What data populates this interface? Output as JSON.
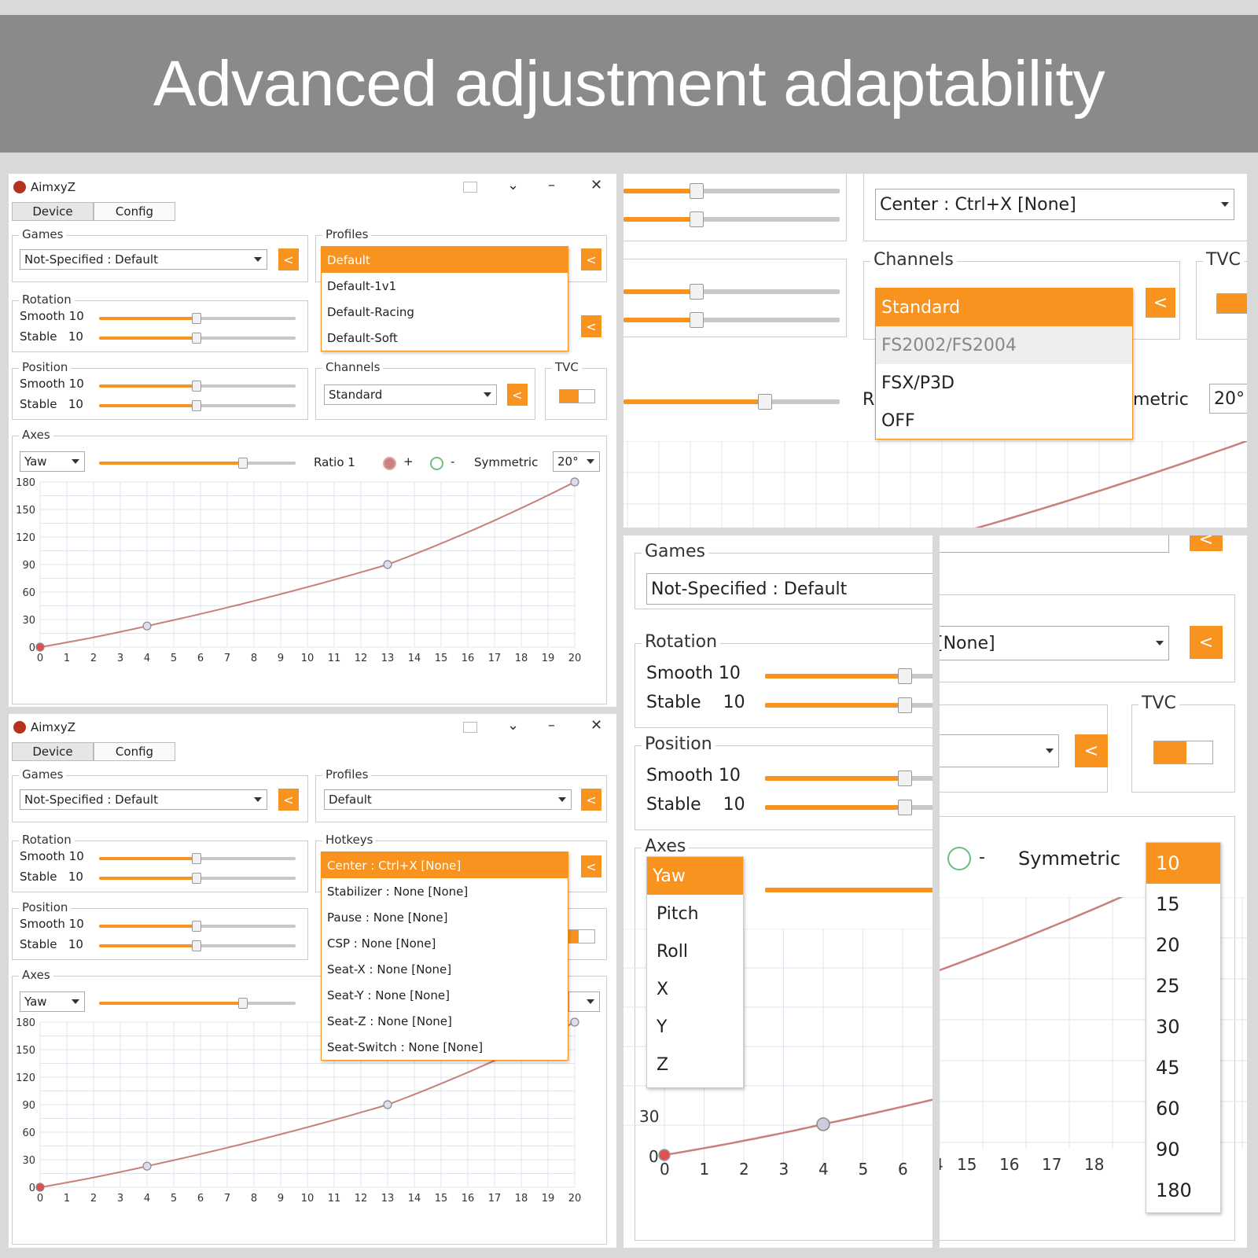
{
  "banner": {
    "title": "Advanced adjustment adaptability"
  },
  "app": {
    "title": "AimxyZ",
    "tabs": [
      "Device",
      "Config"
    ],
    "games_label": "Games",
    "games_value": "Not-Specified : Default",
    "profiles_label": "Profiles",
    "profiles_value": "Default",
    "profile_options": [
      "Default",
      "Default-1v1",
      "Default-Racing",
      "Default-Soft"
    ],
    "rotation_label": "Rotation",
    "position_label": "Position",
    "smooth_label": "Smooth",
    "stable_label": "Stable",
    "smooth_value": "10",
    "stable_value": "10",
    "channels_label": "Channels",
    "channels_value": "Standard",
    "tvc_label": "TVC",
    "hotkeys_label": "Hotkeys",
    "hotkey_options": [
      "Center : Ctrl+X [None]",
      "Stabilizer : None [None]",
      "Pause : None [None]",
      "CSP : None [None]",
      "Seat-X : None [None]",
      "Seat-Y : None [None]",
      "Seat-Z : None [None]",
      "Seat-Switch : None [None]"
    ],
    "axes_label": "Axes",
    "axis_value": "Yaw",
    "ratio_label": "Ratio 1",
    "plus_label": "+",
    "minus_label": "-",
    "symmetric_label": "Symmetric",
    "symmetric_value": "20°",
    "back_glyph": "<"
  },
  "zoom": {
    "center_hotkey": "Center : Ctrl+X [None]",
    "channels_label": "Channels",
    "tvc_label": "TVC",
    "channel_options": [
      "Standard",
      "FS2002/FS2004",
      "FSX/P3D",
      "OFF"
    ],
    "partial_r": "R",
    "partial_metric": "metric",
    "symmetric_value": "20°",
    "games_label": "Games",
    "games_value": "Not-Specified : Default",
    "rotation_label": "Rotation",
    "position_label": "Position",
    "axes_label": "Axes",
    "smooth_row": "Smooth 10",
    "stable_label": "Stable",
    "stable_value": "10",
    "none_hotkey": "[None]",
    "axis_options": [
      "Yaw",
      "Pitch",
      "Roll",
      "X",
      "Y",
      "Z"
    ],
    "minus_label": "-",
    "symmetric_label": "Symmetric",
    "symmetric_options": [
      "10",
      "15",
      "20",
      "25",
      "30",
      "45",
      "60",
      "90",
      "180"
    ],
    "y30": "30",
    "y0": "0",
    "x_ticks_left": [
      "0",
      "1",
      "2",
      "3",
      "4",
      "5",
      "6"
    ],
    "x_ticks_right": [
      "4",
      "15",
      "16",
      "17",
      "18"
    ]
  },
  "chart_data": {
    "type": "line",
    "title": "",
    "xlabel": "",
    "ylabel": "",
    "x": [
      0,
      4,
      13,
      20
    ],
    "y": [
      0,
      23,
      90,
      180
    ],
    "xlim": [
      0,
      20
    ],
    "ylim": [
      0,
      180
    ],
    "x_ticks": [
      0,
      1,
      2,
      3,
      4,
      5,
      6,
      7,
      8,
      9,
      10,
      11,
      12,
      13,
      14,
      15,
      16,
      17,
      18,
      19,
      20
    ],
    "y_ticks": [
      0,
      30,
      60,
      90,
      120,
      150,
      180
    ],
    "control_points": [
      [
        0,
        0
      ],
      [
        4,
        23
      ],
      [
        13,
        90
      ],
      [
        20,
        180
      ]
    ],
    "colors": {
      "line": "#c9807a",
      "grid": "#dfe4ee",
      "accent": "#f7931e"
    }
  }
}
